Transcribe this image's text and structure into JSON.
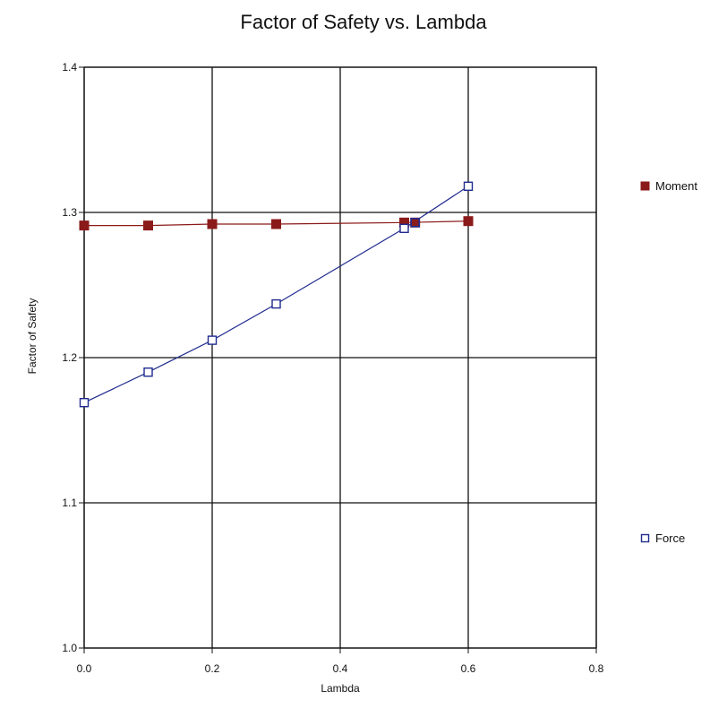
{
  "chart_data": {
    "type": "line",
    "title": "Factor of Safety vs. Lambda",
    "xlabel": "Lambda",
    "ylabel": "Factor of Safety",
    "xlim": [
      0.0,
      0.8
    ],
    "ylim": [
      1.0,
      1.4
    ],
    "x_ticks": [
      "0.0",
      "0.2",
      "0.4",
      "0.6",
      "0.8"
    ],
    "y_ticks": [
      "1.0",
      "1.1",
      "1.2",
      "1.3",
      "1.4"
    ],
    "grid": true,
    "legend_position": "right",
    "series": [
      {
        "name": "Moment",
        "marker": "filled-square",
        "color": "#8b1a1a",
        "x": [
          0.0,
          0.1,
          0.2,
          0.3,
          0.5,
          0.6
        ],
        "y": [
          1.291,
          1.291,
          1.292,
          1.292,
          1.293,
          1.294
        ]
      },
      {
        "name": "Force",
        "marker": "open-square",
        "color": "#1f2b8f",
        "x": [
          0.0,
          0.1,
          0.2,
          0.3,
          0.5,
          0.6
        ],
        "y": [
          1.169,
          1.19,
          1.212,
          1.237,
          1.289,
          1.318
        ]
      }
    ],
    "intersection": {
      "x": 0.517,
      "y": 1.293
    }
  }
}
